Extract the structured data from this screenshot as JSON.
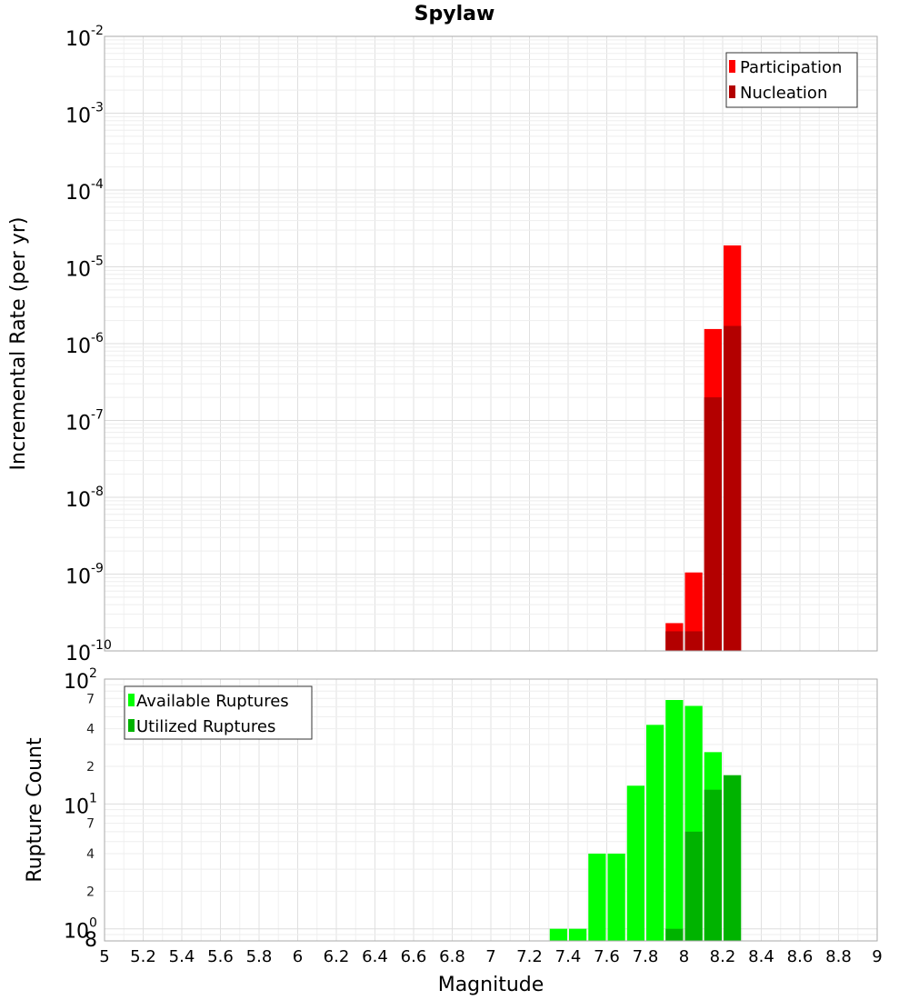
{
  "chart_data": [
    {
      "type": "bar",
      "title": "Spylaw",
      "xlabel": "Magnitude",
      "ylabel": "Incremental Rate (per yr)",
      "yscale": "log",
      "xlim": [
        5,
        9
      ],
      "ylim": [
        1e-10,
        0.01
      ],
      "grid": true,
      "legend_position": "top-right",
      "x": [
        7.95,
        8.05,
        8.15,
        8.25
      ],
      "series": [
        {
          "name": "Participation",
          "color": "#ff0000",
          "values": [
            2.3e-10,
            1.05e-09,
            1.55e-06,
            1.9e-05
          ]
        },
        {
          "name": "Nucleation",
          "color": "#b30000",
          "values": [
            1.8e-10,
            1.8e-10,
            2e-07,
            1.7e-06
          ]
        }
      ],
      "ytick_labels": [
        {
          "base": "10",
          "exp": "-10"
        },
        {
          "base": "10",
          "exp": "-9"
        },
        {
          "base": "10",
          "exp": "-8"
        },
        {
          "base": "10",
          "exp": "-7"
        },
        {
          "base": "10",
          "exp": "-6"
        },
        {
          "base": "10",
          "exp": "-5"
        },
        {
          "base": "10",
          "exp": "-4"
        },
        {
          "base": "10",
          "exp": "-3"
        },
        {
          "base": "10",
          "exp": "-2"
        }
      ]
    },
    {
      "type": "bar",
      "xlabel": "Magnitude",
      "ylabel": "Rupture Count",
      "yscale": "log",
      "xlim": [
        5,
        9
      ],
      "ylim": [
        0.8,
        100
      ],
      "grid": true,
      "legend_position": "top-left",
      "x": [
        7.35,
        7.45,
        7.55,
        7.65,
        7.75,
        7.85,
        7.95,
        8.05,
        8.15,
        8.25
      ],
      "series": [
        {
          "name": "Available Ruptures",
          "color": "#00ff00",
          "values": [
            1,
            1,
            4,
            4,
            14,
            43,
            68,
            61,
            26,
            0
          ]
        },
        {
          "name": "Utilized Ruptures",
          "color": "#00b300",
          "values": [
            0,
            0,
            0,
            0,
            0,
            0,
            1,
            6,
            13,
            17
          ]
        }
      ],
      "ytick_labels": [
        {
          "base": "10",
          "exp": "0"
        },
        {
          "base": "10",
          "exp": "1"
        },
        {
          "base": "10",
          "exp": "2"
        }
      ],
      "minor_tick_labels": [
        "2",
        "4",
        "7",
        "2",
        "4",
        "7"
      ],
      "bottom_tick_label": "8",
      "xticks": [
        "5",
        "5.2",
        "5.4",
        "5.6",
        "5.8",
        "6",
        "6.2",
        "6.4",
        "6.6",
        "6.8",
        "7",
        "7.2",
        "7.4",
        "7.6",
        "7.8",
        "8",
        "8.2",
        "8.4",
        "8.6",
        "8.8",
        "9"
      ]
    }
  ]
}
